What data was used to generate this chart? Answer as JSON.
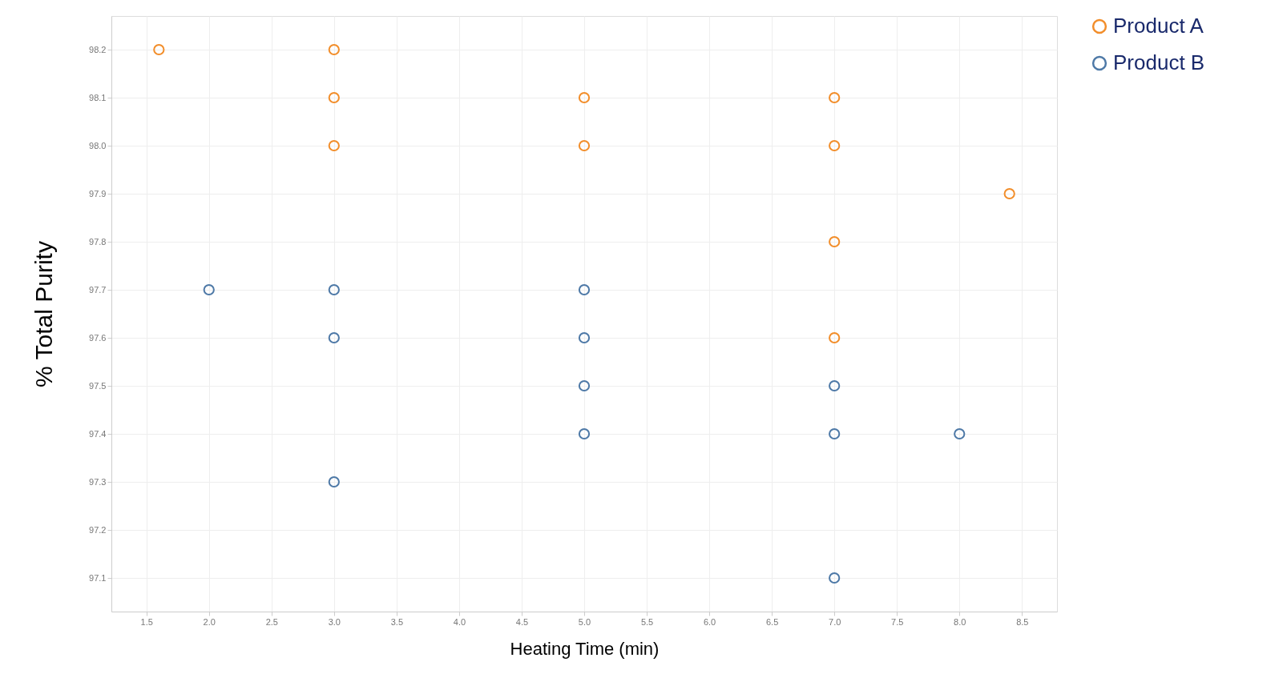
{
  "chart_data": {
    "type": "scatter",
    "xlabel": "Heating Time (min)",
    "ylabel": "% Total Purity",
    "xlim": [
      1.22,
      8.78
    ],
    "ylim": [
      97.03,
      98.27
    ],
    "xticks": [
      {
        "value": 1.5,
        "label": "1.5"
      },
      {
        "value": 2,
        "label": "2.0"
      },
      {
        "value": 2.5,
        "label": "2.5"
      },
      {
        "value": 3,
        "label": "3.0"
      },
      {
        "value": 3.5,
        "label": "3.5"
      },
      {
        "value": 4,
        "label": "4.0"
      },
      {
        "value": 4.5,
        "label": "4.5"
      },
      {
        "value": 5,
        "label": "5.0"
      },
      {
        "value": 5.5,
        "label": "5.5"
      },
      {
        "value": 6,
        "label": "6.0"
      },
      {
        "value": 6.5,
        "label": "6.5"
      },
      {
        "value": 7,
        "label": "7.0"
      },
      {
        "value": 7.5,
        "label": "7.5"
      },
      {
        "value": 8,
        "label": "8.0"
      },
      {
        "value": 8.5,
        "label": "8.5"
      }
    ],
    "yticks": [
      {
        "value": 97.1,
        "label": "97.1"
      },
      {
        "value": 97.2,
        "label": "97.2"
      },
      {
        "value": 97.3,
        "label": "97.3"
      },
      {
        "value": 97.4,
        "label": "97.4"
      },
      {
        "value": 97.5,
        "label": "97.5"
      },
      {
        "value": 97.6,
        "label": "97.6"
      },
      {
        "value": 97.7,
        "label": "97.7"
      },
      {
        "value": 97.8,
        "label": "97.8"
      },
      {
        "value": 97.9,
        "label": "97.9"
      },
      {
        "value": 98.0,
        "label": "98.0"
      },
      {
        "value": 98.1,
        "label": "98.1"
      },
      {
        "value": 98.2,
        "label": "98.2"
      }
    ],
    "grid": true,
    "legend": "top right",
    "marker": "circle",
    "series": [
      {
        "name": "Product A",
        "color": "#f28e2b",
        "x": [
          1.6,
          3,
          3,
          5,
          7,
          3,
          5,
          7,
          8.4,
          7,
          7
        ],
        "values": [
          98.2,
          98.2,
          98.1,
          98.1,
          98.1,
          98.0,
          98.0,
          98.0,
          97.9,
          97.8,
          97.6
        ]
      },
      {
        "name": "Product B",
        "color": "#4e79a7",
        "x": [
          2,
          3,
          5,
          3,
          5,
          5,
          7,
          5,
          7,
          8,
          3,
          7
        ],
        "values": [
          97.7,
          97.7,
          97.7,
          97.6,
          97.6,
          97.5,
          97.5,
          97.4,
          97.4,
          97.4,
          97.3,
          97.1
        ]
      }
    ]
  }
}
